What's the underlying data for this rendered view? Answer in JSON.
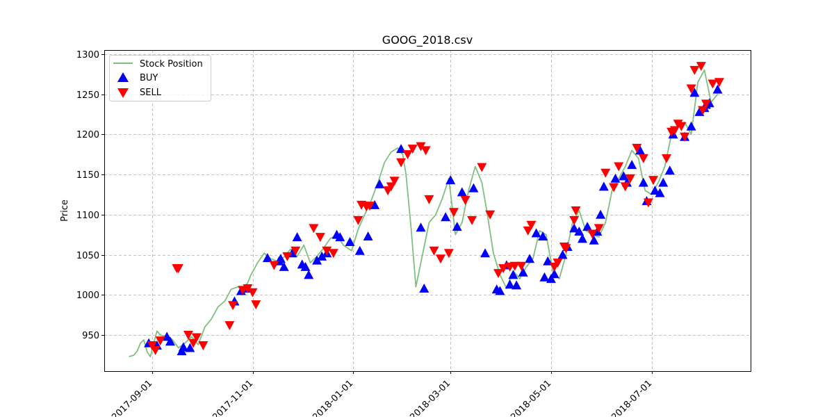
{
  "chart_data": {
    "type": "line",
    "title": "GOOG_2018.csv",
    "xlabel": "",
    "ylabel": "Price",
    "xlim": [
      "2017-08-03",
      "2018-08-30"
    ],
    "ylim": [
      905,
      1305
    ],
    "yticks": [
      950,
      1000,
      1050,
      1100,
      1150,
      1200,
      1250,
      1300
    ],
    "xticks": [
      "2017-09-01",
      "2017-11-01",
      "2018-01-01",
      "2018-03-01",
      "2018-05-01",
      "2018-07-01"
    ],
    "grid": true,
    "legend": {
      "placement": "top-left",
      "entries": [
        "Stock Position",
        "BUY",
        "SELL"
      ]
    },
    "colors": {
      "line": "#7fbf7f",
      "buy": "#0000ff",
      "sell": "#ff0000"
    },
    "series": [
      {
        "name": "Stock Position",
        "x": [
          "2017-08-18",
          "2017-08-21",
          "2017-08-23",
          "2017-08-25",
          "2017-08-27",
          "2017-08-29",
          "2017-08-31",
          "2017-09-02",
          "2017-09-04",
          "2017-09-06",
          "2017-09-09",
          "2017-09-13",
          "2017-09-17",
          "2017-09-21",
          "2017-09-25",
          "2017-09-29",
          "2017-10-03",
          "2017-10-07",
          "2017-10-11",
          "2017-10-15",
          "2017-10-19",
          "2017-10-23",
          "2017-10-27",
          "2017-10-31",
          "2017-11-04",
          "2017-11-08",
          "2017-11-12",
          "2017-11-16",
          "2017-11-20",
          "2017-11-24",
          "2017-11-28",
          "2017-12-02",
          "2017-12-06",
          "2017-12-10",
          "2017-12-14",
          "2017-12-18",
          "2017-12-22",
          "2017-12-26",
          "2017-12-31",
          "2018-01-04",
          "2018-01-08",
          "2018-01-12",
          "2018-01-16",
          "2018-01-20",
          "2018-01-24",
          "2018-01-28",
          "2018-01-31",
          "2018-02-02",
          "2018-02-05",
          "2018-02-08",
          "2018-02-12",
          "2018-02-16",
          "2018-02-20",
          "2018-02-24",
          "2018-02-28",
          "2018-03-04",
          "2018-03-08",
          "2018-03-12",
          "2018-03-16",
          "2018-03-20",
          "2018-03-23",
          "2018-03-27",
          "2018-03-31",
          "2018-04-04",
          "2018-04-08",
          "2018-04-12",
          "2018-04-16",
          "2018-04-20",
          "2018-04-24",
          "2018-04-28",
          "2018-05-02",
          "2018-05-06",
          "2018-05-10",
          "2018-05-14",
          "2018-05-18",
          "2018-05-22",
          "2018-05-26",
          "2018-05-30",
          "2018-06-03",
          "2018-06-07",
          "2018-06-11",
          "2018-06-15",
          "2018-06-19",
          "2018-06-23",
          "2018-06-27",
          "2018-07-01",
          "2018-07-05",
          "2018-07-09",
          "2018-07-13",
          "2018-07-17",
          "2018-07-21",
          "2018-07-25",
          "2018-07-29",
          "2018-08-02",
          "2018-08-06",
          "2018-08-10"
        ],
        "values": [
          923,
          925,
          930,
          940,
          944,
          929,
          923,
          940,
          955,
          950,
          948,
          945,
          934,
          940,
          948,
          938,
          960,
          970,
          985,
          992,
          1007,
          1010,
          1005,
          1025,
          1040,
          1052,
          1045,
          1042,
          1047,
          1057,
          1048,
          1062,
          1040,
          1048,
          1058,
          1070,
          1075,
          1062,
          1055,
          1082,
          1100,
          1118,
          1140,
          1165,
          1178,
          1183,
          1175,
          1150,
          1085,
          1010,
          1050,
          1090,
          1100,
          1120,
          1145,
          1075,
          1090,
          1130,
          1160,
          1140,
          1105,
          1052,
          1025,
          1008,
          1030,
          1020,
          1035,
          1045,
          1080,
          1075,
          1030,
          1020,
          1050,
          1090,
          1105,
          1080,
          1075,
          1072,
          1090,
          1130,
          1145,
          1160,
          1180,
          1170,
          1130,
          1125,
          1140,
          1160,
          1200,
          1210,
          1215,
          1200,
          1265,
          1280,
          1240,
          1250
        ]
      }
    ],
    "buy_signals": {
      "x": [
        "2017-08-30",
        "2017-09-04",
        "2017-09-10",
        "2017-09-12",
        "2017-09-19",
        "2017-09-20",
        "2017-09-24",
        "2017-10-21",
        "2017-10-25",
        "2017-10-28",
        "2017-11-10",
        "2017-11-17",
        "2017-11-18",
        "2017-11-20",
        "2017-11-25",
        "2017-11-28",
        "2017-12-01",
        "2017-12-03",
        "2017-12-05",
        "2017-12-10",
        "2017-12-13",
        "2017-12-16",
        "2017-12-22",
        "2017-12-24",
        "2017-12-30",
        "2018-01-05",
        "2018-01-10",
        "2018-01-14",
        "2018-01-17",
        "2018-01-30",
        "2018-02-11",
        "2018-02-13",
        "2018-02-26",
        "2018-03-01",
        "2018-03-05",
        "2018-03-08",
        "2018-03-15",
        "2018-03-22",
        "2018-03-29",
        "2018-03-31",
        "2018-04-04",
        "2018-04-06",
        "2018-04-08",
        "2018-04-10",
        "2018-04-14",
        "2018-04-18",
        "2018-04-22",
        "2018-04-26",
        "2018-04-27",
        "2018-04-29",
        "2018-05-01",
        "2018-05-03",
        "2018-05-08",
        "2018-05-11",
        "2018-05-15",
        "2018-05-18",
        "2018-05-20",
        "2018-05-23",
        "2018-05-27",
        "2018-05-29",
        "2018-05-31",
        "2018-06-02",
        "2018-06-09",
        "2018-06-14",
        "2018-06-16",
        "2018-06-19",
        "2018-06-24",
        "2018-06-26",
        "2018-06-28",
        "2018-07-03",
        "2018-07-06",
        "2018-07-08",
        "2018-07-12",
        "2018-07-14",
        "2018-07-21",
        "2018-07-25",
        "2018-07-27",
        "2018-07-30",
        "2018-08-02",
        "2018-08-03",
        "2018-08-05",
        "2018-08-10"
      ],
      "values": [
        940,
        937,
        948,
        942,
        930,
        935,
        934,
        992,
        1005,
        1008,
        1046,
        1042,
        1045,
        1035,
        1052,
        1072,
        1038,
        1035,
        1025,
        1043,
        1048,
        1052,
        1075,
        1072,
        1066,
        1055,
        1073,
        1112,
        1138,
        1182,
        1084,
        1008,
        1097,
        1143,
        1085,
        1128,
        1133,
        1052,
        1007,
        1005,
        1037,
        1013,
        1025,
        1012,
        1028,
        1045,
        1077,
        1073,
        1022,
        1042,
        1020,
        1026,
        1050,
        1060,
        1083,
        1079,
        1070,
        1085,
        1068,
        1079,
        1100,
        1135,
        1145,
        1148,
        1140,
        1162,
        1180,
        1140,
        1117,
        1130,
        1127,
        1140,
        1155,
        1200,
        1197,
        1210,
        1252,
        1228,
        1233,
        1237,
        1239,
        1256
      ]
    },
    "sell_signals": {
      "x": [
        "2017-09-01",
        "2017-09-03",
        "2017-09-06",
        "2017-09-16",
        "2017-09-17",
        "2017-09-23",
        "2017-09-26",
        "2017-09-28",
        "2017-10-02",
        "2017-10-18",
        "2017-10-20",
        "2017-10-26",
        "2017-10-29",
        "2017-11-01",
        "2017-11-03",
        "2017-11-14",
        "2017-11-22",
        "2017-11-27",
        "2017-12-08",
        "2017-12-12",
        "2017-12-16",
        "2017-12-20",
        "2018-01-04",
        "2018-01-06",
        "2018-01-09",
        "2018-01-11",
        "2018-01-22",
        "2018-01-24",
        "2018-01-26",
        "2018-01-30",
        "2018-02-03",
        "2018-02-06",
        "2018-02-11",
        "2018-02-14",
        "2018-02-16",
        "2018-02-19",
        "2018-02-23",
        "2018-02-28",
        "2018-03-03",
        "2018-03-10",
        "2018-03-14",
        "2018-03-20",
        "2018-03-25",
        "2018-03-30",
        "2018-04-02",
        "2018-04-06",
        "2018-04-09",
        "2018-04-13",
        "2018-04-17",
        "2018-04-19",
        "2018-05-03",
        "2018-05-05",
        "2018-05-09",
        "2018-05-10",
        "2018-05-15",
        "2018-05-16",
        "2018-05-26",
        "2018-05-30",
        "2018-06-03",
        "2018-06-08",
        "2018-06-11",
        "2018-06-15",
        "2018-06-18",
        "2018-06-22",
        "2018-06-26",
        "2018-06-29",
        "2018-07-02",
        "2018-07-10",
        "2018-07-13",
        "2018-07-15",
        "2018-07-17",
        "2018-07-19",
        "2018-07-21",
        "2018-07-25",
        "2018-07-27",
        "2018-07-31",
        "2018-08-01",
        "2018-08-03",
        "2018-08-07",
        "2018-08-11"
      ],
      "values": [
        937,
        931,
        943,
        1033,
        1033,
        950,
        940,
        947,
        937,
        962,
        987,
        1006,
        1008,
        1003,
        988,
        1037,
        1048,
        1055,
        1083,
        1072,
        1055,
        1052,
        1093,
        1112,
        1110,
        1111,
        1130,
        1135,
        1142,
        1165,
        1175,
        1182,
        1185,
        1180,
        1119,
        1055,
        1045,
        1052,
        1103,
        1118,
        1093,
        1159,
        1100,
        1027,
        1033,
        1035,
        1036,
        1036,
        1080,
        1087,
        1035,
        1040,
        1060,
        1058,
        1093,
        1105,
        1076,
        1083,
        1152,
        1134,
        1160,
        1135,
        1145,
        1183,
        1170,
        1115,
        1143,
        1170,
        1203,
        1205,
        1213,
        1210,
        1197,
        1257,
        1280,
        1285,
        1230,
        1238,
        1263,
        1265
      ]
    }
  }
}
